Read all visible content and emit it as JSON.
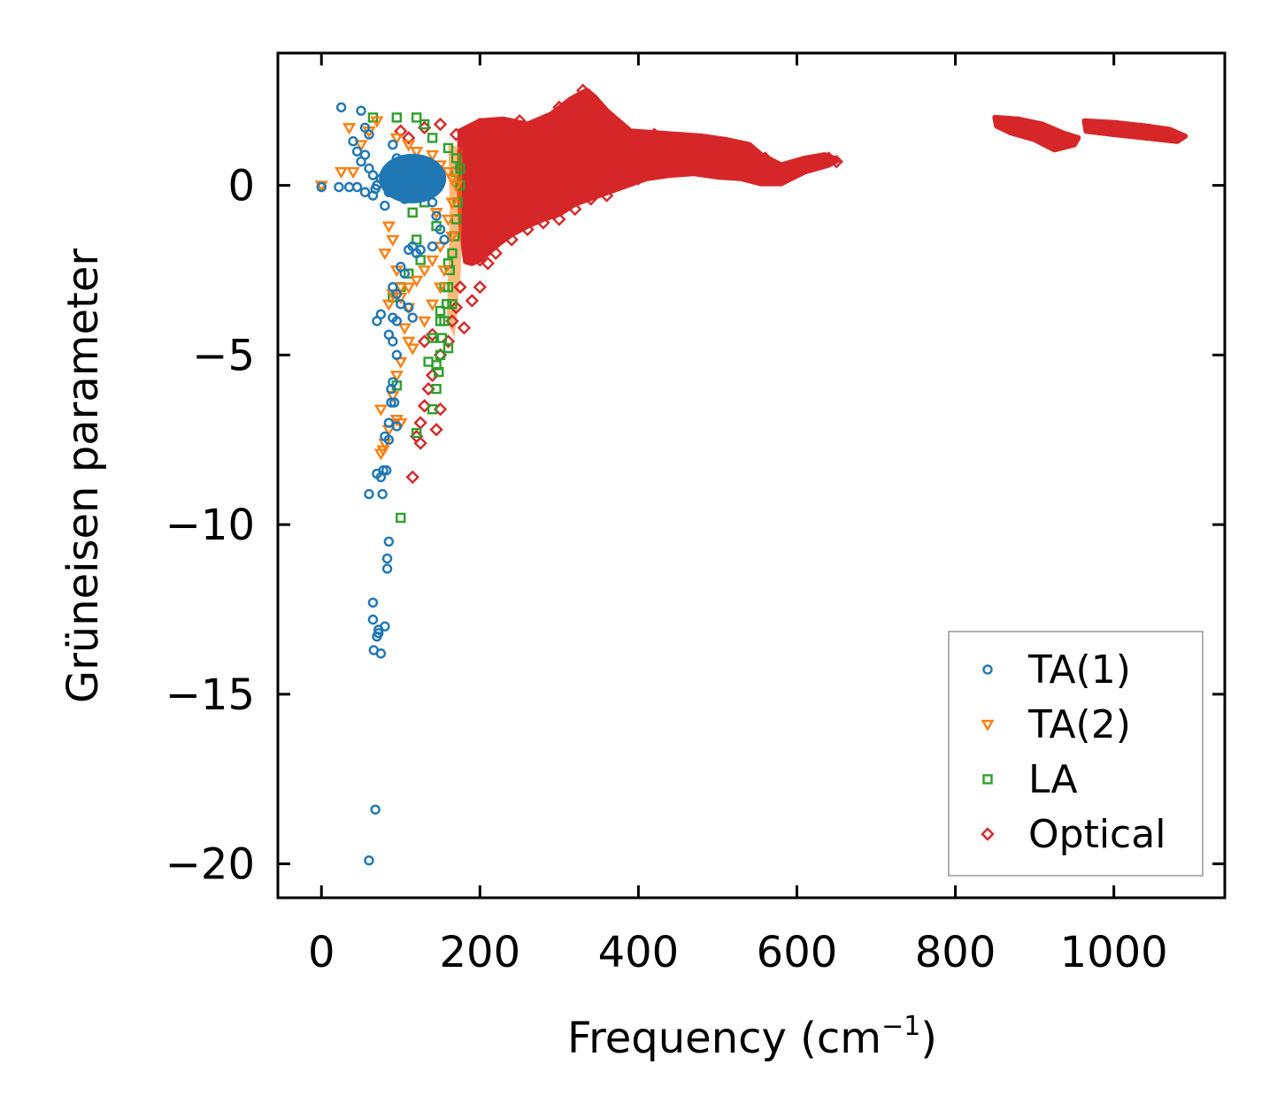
{
  "chart_data": {
    "type": "scatter",
    "title": "",
    "xlabel": "Frequency (cm",
    "xlabel_sup": "−1",
    "xlabel_close": ")",
    "ylabel": "Grüneisen parameter",
    "xlim": [
      -55,
      1140
    ],
    "ylim": [
      -21,
      3.9
    ],
    "xticks": [
      0,
      200,
      400,
      600,
      800,
      1000
    ],
    "xtick_labels": [
      "0",
      "200",
      "400",
      "600",
      "800",
      "1000"
    ],
    "yticks": [
      0,
      -5,
      -10,
      -15,
      -20
    ],
    "ytick_labels": [
      "0",
      "−5",
      "−10",
      "−15",
      "−20"
    ],
    "grid": false,
    "legend_position": "lower-right",
    "series": [
      {
        "name": "TA(1)",
        "marker": "circle",
        "color": "#1f77b4",
        "points": [
          [
            25,
            2.3
          ],
          [
            50,
            2.2
          ],
          [
            55,
            1.7
          ],
          [
            60,
            1.5
          ],
          [
            40,
            1.3
          ],
          [
            45,
            1.0
          ],
          [
            55,
            0.9
          ],
          [
            50,
            0.7
          ],
          [
            60,
            0.5
          ],
          [
            65,
            0.3
          ],
          [
            75,
            0.2
          ],
          [
            70,
            0.0
          ],
          [
            65,
            -0.3
          ],
          [
            80,
            -0.6
          ],
          [
            85,
            -0.2
          ],
          [
            0,
            -0.05
          ],
          [
            22,
            -0.05
          ],
          [
            35,
            -0.05
          ],
          [
            45,
            -0.05
          ],
          [
            55,
            -0.2
          ],
          [
            68,
            -0.1
          ],
          [
            90,
            1.2
          ],
          [
            95,
            0.8
          ],
          [
            100,
            0.3
          ],
          [
            105,
            -0.4
          ],
          [
            110,
            0.6
          ],
          [
            115,
            -0.2
          ],
          [
            120,
            0.4
          ],
          [
            125,
            0.1
          ],
          [
            130,
            -0.3
          ],
          [
            135,
            0.5
          ],
          [
            140,
            -0.5
          ],
          [
            145,
            -0.9
          ],
          [
            150,
            -1.3
          ],
          [
            155,
            -1.6
          ],
          [
            110,
            -1.9
          ],
          [
            115,
            -1.8
          ],
          [
            120,
            -2.0
          ],
          [
            125,
            -1.9
          ],
          [
            140,
            -1.8
          ],
          [
            100,
            -2.4
          ],
          [
            105,
            -2.6
          ],
          [
            90,
            -3.0
          ],
          [
            95,
            -3.2
          ],
          [
            100,
            -3.5
          ],
          [
            110,
            -3.6
          ],
          [
            115,
            -3.9
          ],
          [
            75,
            -3.8
          ],
          [
            70,
            -4.0
          ],
          [
            90,
            -3.9
          ],
          [
            95,
            -4.0
          ],
          [
            85,
            -4.4
          ],
          [
            90,
            -4.6
          ],
          [
            95,
            -5.0
          ],
          [
            90,
            -5.8
          ],
          [
            88,
            -6.0
          ],
          [
            88,
            -6.4
          ],
          [
            92,
            -6.4
          ],
          [
            85,
            -7.0
          ],
          [
            95,
            -7.1
          ],
          [
            80,
            -7.4
          ],
          [
            85,
            -7.5
          ],
          [
            70,
            -8.5
          ],
          [
            78,
            -8.4
          ],
          [
            82,
            -8.4
          ],
          [
            75,
            -8.6
          ],
          [
            60,
            -9.1
          ],
          [
            77,
            -9.1
          ],
          [
            85,
            -10.5
          ],
          [
            83,
            -11.0
          ],
          [
            83,
            -11.3
          ],
          [
            65,
            -12.3
          ],
          [
            65,
            -12.8
          ],
          [
            80,
            -13.0
          ],
          [
            72,
            -13.1
          ],
          [
            70,
            -13.3
          ],
          [
            72,
            -13.2
          ],
          [
            66,
            -13.7
          ],
          [
            75,
            -13.8
          ],
          [
            68,
            -18.4
          ],
          [
            60,
            -19.9
          ]
        ]
      },
      {
        "name": "TA(2)",
        "marker": "triangle-down",
        "color": "#ff7f0e",
        "points": [
          [
            0,
            0.0
          ],
          [
            35,
            1.7
          ],
          [
            25,
            0.4
          ],
          [
            40,
            0.4
          ],
          [
            50,
            1.2
          ],
          [
            60,
            1.6
          ],
          [
            70,
            1.9
          ],
          [
            95,
            1.4
          ],
          [
            110,
            1.2
          ],
          [
            120,
            1.0
          ],
          [
            140,
            0.9
          ],
          [
            150,
            0.6
          ],
          [
            160,
            0.4
          ],
          [
            165,
            0.2
          ],
          [
            170,
            0.0
          ],
          [
            165,
            -0.5
          ],
          [
            160,
            -1.0
          ],
          [
            165,
            -1.5
          ],
          [
            150,
            -1.8
          ],
          [
            140,
            -2.2
          ],
          [
            130,
            -2.5
          ],
          [
            120,
            -2.8
          ],
          [
            110,
            -3.0
          ],
          [
            100,
            -3.3
          ],
          [
            90,
            -3.2
          ],
          [
            85,
            -3.5
          ],
          [
            80,
            -2.0
          ],
          [
            85,
            -1.2
          ],
          [
            90,
            -1.6
          ],
          [
            95,
            -2.5
          ],
          [
            100,
            -3.0
          ],
          [
            110,
            -3.6
          ],
          [
            105,
            -4.2
          ],
          [
            110,
            -4.6
          ],
          [
            115,
            -4.8
          ],
          [
            100,
            -5.2
          ],
          [
            95,
            -5.6
          ],
          [
            90,
            -6.2
          ],
          [
            75,
            -6.6
          ],
          [
            95,
            -6.9
          ],
          [
            100,
            -7.0
          ],
          [
            85,
            -7.2
          ],
          [
            80,
            -7.6
          ],
          [
            78,
            -7.8
          ],
          [
            75,
            -7.9
          ],
          [
            130,
            -4.0
          ],
          [
            140,
            -3.5
          ],
          [
            150,
            -3.0
          ],
          [
            155,
            -2.5
          ],
          [
            145,
            -0.8
          ],
          [
            135,
            0.6
          ]
        ]
      },
      {
        "name": "LA",
        "marker": "square",
        "color": "#2ca02c",
        "points": [
          [
            65,
            2.0
          ],
          [
            95,
            2.0
          ],
          [
            120,
            2.0
          ],
          [
            130,
            1.8
          ],
          [
            140,
            1.4
          ],
          [
            160,
            1.1
          ],
          [
            170,
            0.8
          ],
          [
            175,
            0.5
          ],
          [
            175,
            0.0
          ],
          [
            172,
            -0.5
          ],
          [
            170,
            -1.0
          ],
          [
            168,
            -1.5
          ],
          [
            165,
            -2.0
          ],
          [
            162,
            -2.5
          ],
          [
            160,
            -3.0
          ],
          [
            158,
            -3.5
          ],
          [
            155,
            -4.0
          ],
          [
            152,
            -4.5
          ],
          [
            150,
            -5.0
          ],
          [
            148,
            -5.5
          ],
          [
            145,
            -6.0
          ],
          [
            140,
            -6.6
          ],
          [
            150,
            -4.0
          ],
          [
            155,
            -3.0
          ],
          [
            160,
            -2.3
          ],
          [
            110,
            -2.6
          ],
          [
            100,
            -3.0
          ],
          [
            90,
            -3.3
          ],
          [
            95,
            -5.9
          ],
          [
            120,
            -7.3
          ],
          [
            100,
            -9.8
          ],
          [
            115,
            -0.8
          ],
          [
            120,
            -1.6
          ],
          [
            125,
            -2.2
          ],
          [
            130,
            -0.5
          ],
          [
            145,
            -1.2
          ],
          [
            165,
            -3.5
          ],
          [
            160,
            -4.8
          ],
          [
            145,
            -5.3
          ],
          [
            135,
            -5.2
          ],
          [
            140,
            -4.5
          ],
          [
            150,
            -3.7
          ],
          [
            170,
            0.4
          ]
        ]
      },
      {
        "name": "Optical",
        "marker": "diamond",
        "color": "#d62728",
        "points": [
          [
            90,
            0.2
          ],
          [
            100,
            1.6
          ],
          [
            110,
            1.4
          ],
          [
            130,
            1.7
          ],
          [
            150,
            1.8
          ],
          [
            170,
            1.5
          ],
          [
            180,
            1.0
          ],
          [
            185,
            -0.3
          ],
          [
            190,
            -1.2
          ],
          [
            200,
            -2.2
          ],
          [
            210,
            -2.3
          ],
          [
            220,
            -2.0
          ],
          [
            240,
            -1.6
          ],
          [
            260,
            -1.3
          ],
          [
            280,
            -1.1
          ],
          [
            300,
            -1.0
          ],
          [
            320,
            -0.7
          ],
          [
            340,
            -0.4
          ],
          [
            360,
            -0.3
          ],
          [
            380,
            0.1
          ],
          [
            400,
            0.2
          ],
          [
            420,
            0.6
          ],
          [
            440,
            0.8
          ],
          [
            460,
            1.0
          ],
          [
            480,
            0.9
          ],
          [
            500,
            0.7
          ],
          [
            520,
            0.6
          ],
          [
            540,
            0.4
          ],
          [
            560,
            0.2
          ],
          [
            580,
            0.3
          ],
          [
            600,
            0.5
          ],
          [
            620,
            0.7
          ],
          [
            640,
            0.8
          ],
          [
            650,
            0.7
          ],
          [
            200,
            1.8
          ],
          [
            250,
            1.9
          ],
          [
            300,
            2.3
          ],
          [
            330,
            2.8
          ],
          [
            350,
            2.3
          ],
          [
            380,
            1.6
          ],
          [
            420,
            1.5
          ],
          [
            480,
            1.2
          ],
          [
            540,
            1.0
          ],
          [
            560,
            0.8
          ],
          [
            175,
            -3.0
          ],
          [
            170,
            -3.6
          ],
          [
            165,
            -4.0
          ],
          [
            160,
            -4.6
          ],
          [
            150,
            -5.0
          ],
          [
            140,
            -5.6
          ],
          [
            135,
            -6.0
          ],
          [
            130,
            -6.5
          ],
          [
            125,
            -7.0
          ],
          [
            120,
            -7.4
          ],
          [
            125,
            -7.6
          ],
          [
            115,
            -8.6
          ],
          [
            190,
            -3.4
          ],
          [
            200,
            -3.0
          ],
          [
            180,
            -4.2
          ],
          [
            140,
            -4.4
          ],
          [
            130,
            -4.6
          ],
          [
            150,
            -6.6
          ],
          [
            145,
            -7.2
          ]
        ]
      }
    ],
    "optical_bands": [
      {
        "name": "Optical",
        "color": "#d62728",
        "outline": [
          [
            175,
            1.6
          ],
          [
            200,
            1.9
          ],
          [
            230,
            1.95
          ],
          [
            260,
            1.8
          ],
          [
            290,
            2.1
          ],
          [
            315,
            2.55
          ],
          [
            335,
            2.8
          ],
          [
            345,
            2.6
          ],
          [
            360,
            2.2
          ],
          [
            390,
            1.6
          ],
          [
            420,
            1.55
          ],
          [
            450,
            1.5
          ],
          [
            480,
            1.45
          ],
          [
            510,
            1.35
          ],
          [
            540,
            1.2
          ],
          [
            555,
            0.9
          ],
          [
            580,
            0.6
          ],
          [
            610,
            0.8
          ],
          [
            635,
            0.9
          ],
          [
            652,
            0.75
          ],
          [
            640,
            0.6
          ],
          [
            610,
            0.4
          ],
          [
            580,
            0.05
          ],
          [
            555,
            0.05
          ],
          [
            530,
            0.2
          ],
          [
            500,
            0.25
          ],
          [
            470,
            0.35
          ],
          [
            440,
            0.3
          ],
          [
            410,
            0.2
          ],
          [
            380,
            -0.05
          ],
          [
            350,
            -0.3
          ],
          [
            320,
            -0.55
          ],
          [
            300,
            -0.85
          ],
          [
            280,
            -1.0
          ],
          [
            260,
            -1.2
          ],
          [
            240,
            -1.45
          ],
          [
            225,
            -1.7
          ],
          [
            210,
            -2.0
          ],
          [
            200,
            -2.2
          ],
          [
            190,
            -2.3
          ],
          [
            182,
            -2.25
          ],
          [
            176,
            -1.2
          ],
          [
            174,
            0.0
          ]
        ]
      },
      {
        "name": "Optical",
        "color": "#d62728",
        "outline": [
          [
            850,
            2.0
          ],
          [
            880,
            1.95
          ],
          [
            910,
            1.8
          ],
          [
            935,
            1.55
          ],
          [
            955,
            1.4
          ],
          [
            950,
            1.2
          ],
          [
            925,
            1.05
          ],
          [
            900,
            1.35
          ],
          [
            870,
            1.55
          ],
          [
            852,
            1.75
          ]
        ]
      },
      {
        "name": "Optical",
        "color": "#d62728",
        "outline": [
          [
            963,
            1.9
          ],
          [
            1000,
            1.85
          ],
          [
            1040,
            1.75
          ],
          [
            1070,
            1.65
          ],
          [
            1090,
            1.45
          ],
          [
            1080,
            1.3
          ],
          [
            1040,
            1.4
          ],
          [
            1000,
            1.5
          ],
          [
            965,
            1.6
          ]
        ]
      }
    ]
  }
}
